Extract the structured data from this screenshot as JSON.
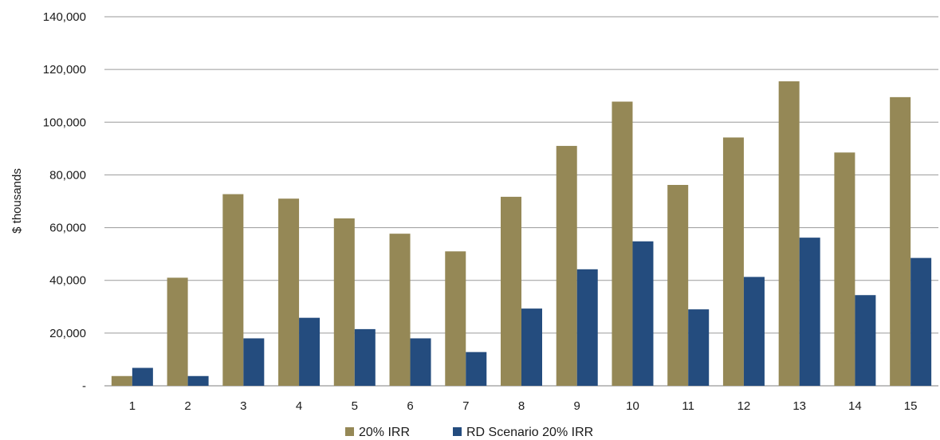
{
  "chart_data": {
    "type": "bar",
    "title": "",
    "xlabel": "",
    "ylabel": "$ thousands",
    "ylim": [
      0,
      140000
    ],
    "yticks": [
      0,
      20000,
      40000,
      60000,
      80000,
      100000,
      120000,
      140000
    ],
    "ytick_labels": [
      "-",
      "20,000",
      "40,000",
      "60,000",
      "80,000",
      "100,000",
      "120,000",
      "140,000"
    ],
    "categories": [
      "1",
      "2",
      "3",
      "4",
      "5",
      "6",
      "7",
      "8",
      "9",
      "10",
      "11",
      "12",
      "13",
      "14",
      "15"
    ],
    "grid": true,
    "legend_position": "bottom",
    "series": [
      {
        "name": "20% IRR",
        "color": "#958856",
        "values": [
          3700,
          41000,
          72700,
          71000,
          63500,
          57700,
          51000,
          71700,
          91000,
          107800,
          76200,
          94200,
          115500,
          88500,
          109500
        ]
      },
      {
        "name": "RD Scenario 20% IRR",
        "color": "#244c7e",
        "values": [
          6800,
          3700,
          18000,
          25800,
          21500,
          18000,
          12800,
          29300,
          44200,
          54800,
          29000,
          41300,
          56200,
          34400,
          48500
        ]
      }
    ]
  }
}
